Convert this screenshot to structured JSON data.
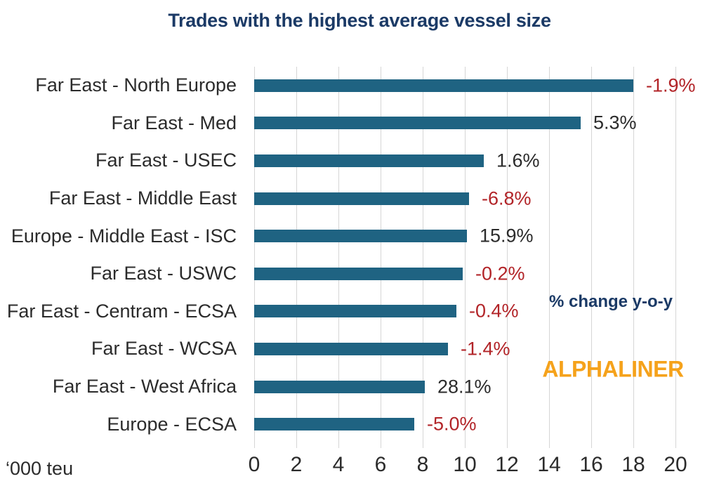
{
  "colors": {
    "background": "#ffffff",
    "bar": "#1f6382",
    "negative_label": "#b22428",
    "positive_label": "#2b2b2b",
    "navy": "#1b3a66",
    "orange": "#f5a21b",
    "grid": "#d6d6d6"
  },
  "chart_data": {
    "type": "bar",
    "orientation": "horizontal",
    "title": "Trades with the highest average vessel size",
    "unit_label": "‘000 teu",
    "annotation": "% change y-o-y",
    "watermark": "ALPHALINER",
    "xlim": [
      0,
      20
    ],
    "xticks": [
      0,
      2,
      4,
      6,
      8,
      10,
      12,
      14,
      16,
      18,
      20
    ],
    "grid": true,
    "legend": "none",
    "categories": [
      "Far East - North Europe",
      "Far East - Med",
      "Far East - USEC",
      "Far East - Middle East",
      "Europe - Middle East - ISC",
      "Far East - USWC",
      "Far East - Centram - ECSA",
      "Far East - WCSA",
      "Far East - West Africa",
      "Europe - ECSA"
    ],
    "values": [
      18.0,
      15.5,
      10.9,
      10.2,
      10.1,
      9.9,
      9.6,
      9.2,
      8.1,
      7.6
    ],
    "change_labels": [
      "-1.9%",
      "5.3%",
      "1.6%",
      "-6.8%",
      "15.9%",
      "-0.2%",
      "-0.4%",
      "-1.4%",
      "28.1%",
      "-5.0%"
    ]
  }
}
